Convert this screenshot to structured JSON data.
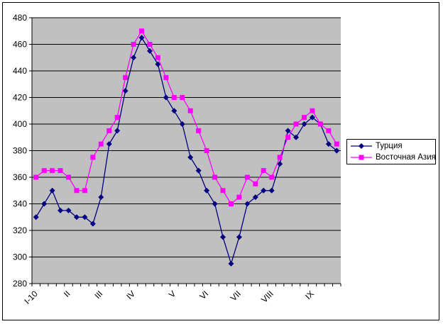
{
  "chart_data": {
    "type": "line",
    "title": "",
    "x_labels": [
      "I-10",
      "II",
      "III",
      "IV",
      "V",
      "VI",
      "VII",
      "VIII",
      "IX"
    ],
    "x_label_point_indices": [
      0,
      4,
      8,
      12,
      17,
      21,
      25,
      29,
      34
    ],
    "n_points": 38,
    "ylim": [
      280,
      480
    ],
    "y_tick_step": 20,
    "y_ticks": [
      280,
      300,
      320,
      340,
      360,
      380,
      400,
      420,
      440,
      460,
      480
    ],
    "grid": true,
    "plot_bg_color": "#C0C0C0",
    "axis_color": "#000000",
    "text_color": "#000000",
    "legend_position": "right",
    "series": [
      {
        "name": "Турция",
        "slug": "turkey",
        "color": "#000080",
        "marker": "diamond",
        "values": [
          330,
          340,
          350,
          335,
          335,
          330,
          330,
          325,
          345,
          385,
          395,
          425,
          450,
          465,
          455,
          445,
          420,
          410,
          400,
          375,
          365,
          350,
          340,
          315,
          295,
          315,
          340,
          345,
          350,
          350,
          370,
          395,
          390,
          400,
          405,
          400,
          385,
          380
        ]
      },
      {
        "name": "Восточная Азия",
        "slug": "east-asia",
        "color": "#FF00FF",
        "marker": "square",
        "values": [
          360,
          365,
          365,
          365,
          360,
          350,
          350,
          375,
          385,
          395,
          405,
          435,
          460,
          470,
          460,
          450,
          435,
          420,
          420,
          410,
          395,
          380,
          360,
          350,
          340,
          345,
          360,
          355,
          365,
          360,
          375,
          390,
          400,
          405,
          410,
          400,
          395,
          385
        ]
      }
    ]
  }
}
